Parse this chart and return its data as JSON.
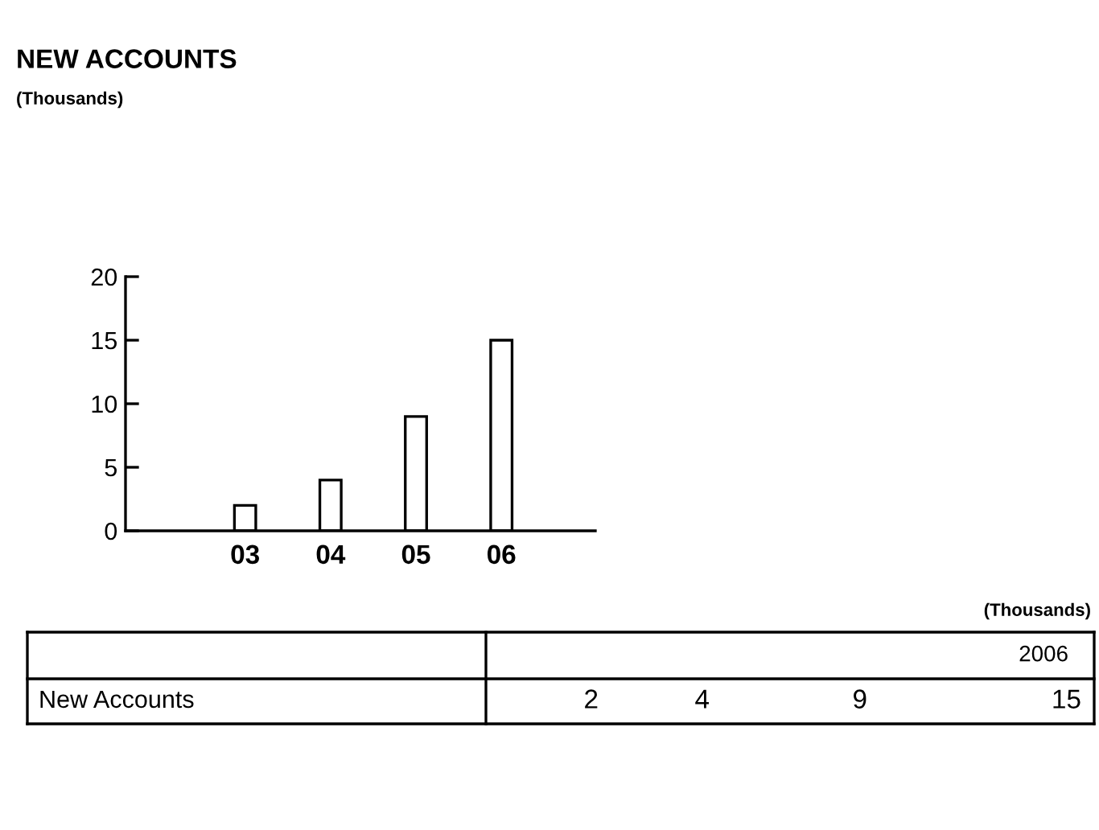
{
  "chart_data": {
    "type": "bar",
    "title": "NEW ACCOUNTS",
    "subtitle": "(Thousands)",
    "categories": [
      "03",
      "04",
      "05",
      "06"
    ],
    "series": [
      {
        "name": "New Accounts",
        "color": "#ffffff",
        "values": [
          2,
          4,
          9,
          15
        ]
      }
    ],
    "ylim": [
      0,
      20
    ],
    "yticks": [
      0,
      5,
      10,
      15,
      20
    ],
    "grid": false,
    "legend": false,
    "annotations": [
      "(Thousands)",
      "2006",
      "2",
      "4",
      "9",
      "15"
    ]
  }
}
